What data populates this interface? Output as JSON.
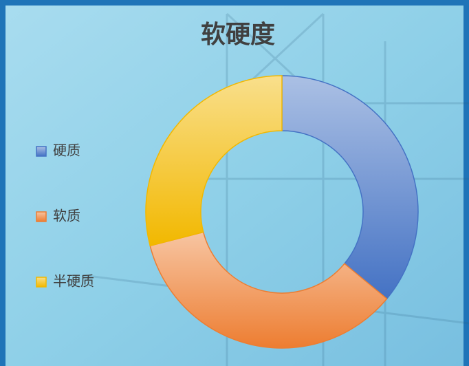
{
  "chart_data": {
    "type": "donut",
    "title": "软硬度",
    "categories": [
      "硬质",
      "软质",
      "半硬质"
    ],
    "values": [
      36,
      35,
      29
    ],
    "colors": [
      "#4472c4",
      "#ed7d31",
      "#f2b800"
    ],
    "legend": "left"
  }
}
